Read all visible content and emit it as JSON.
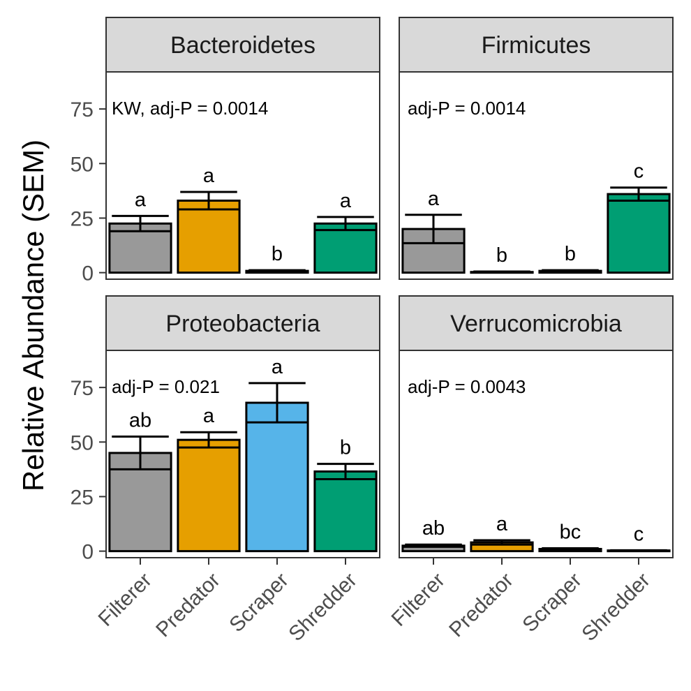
{
  "chart_data": {
    "type": "bar",
    "ylabel": "Relative Abundance (SEM)",
    "ylim": [
      -3,
      92
    ],
    "yticks": [
      0,
      25,
      50,
      75
    ],
    "categories": [
      "Filterer",
      "Predator",
      "Scraper",
      "Shredder"
    ],
    "colors": {
      "Filterer": "#999999",
      "Predator": "#E69F00",
      "Scraper": "#56B4E9",
      "Shredder": "#009E73"
    },
    "panels": [
      {
        "title": "Bacteroidetes",
        "annotation": "KW, adj-P = 0.0014",
        "values": [
          22.5,
          33.0,
          0.8,
          22.5
        ],
        "errors": [
          3.5,
          4.0,
          0.3,
          3.0
        ],
        "letters": [
          "a",
          "a",
          "b",
          "a"
        ]
      },
      {
        "title": "Firmicutes",
        "annotation": "adj-P = 0.0014",
        "values": [
          20.0,
          0.3,
          0.8,
          36.0
        ],
        "errors": [
          6.5,
          0.2,
          0.3,
          3.0
        ],
        "letters": [
          "a",
          "b",
          "b",
          "c"
        ]
      },
      {
        "title": "Proteobacteria",
        "annotation": "adj-P = 0.021",
        "values": [
          45.0,
          51.0,
          68.0,
          36.5
        ],
        "errors": [
          7.5,
          3.5,
          9.0,
          3.5
        ],
        "letters": [
          "ab",
          "a",
          "a",
          "b"
        ]
      },
      {
        "title": "Verrucomicrobia",
        "annotation": "adj-P = 0.0043",
        "values": [
          2.5,
          4.0,
          1.0,
          0.3
        ],
        "errors": [
          0.5,
          1.0,
          0.3,
          0.1
        ],
        "letters": [
          "ab",
          "a",
          "bc",
          "c"
        ]
      }
    ]
  }
}
